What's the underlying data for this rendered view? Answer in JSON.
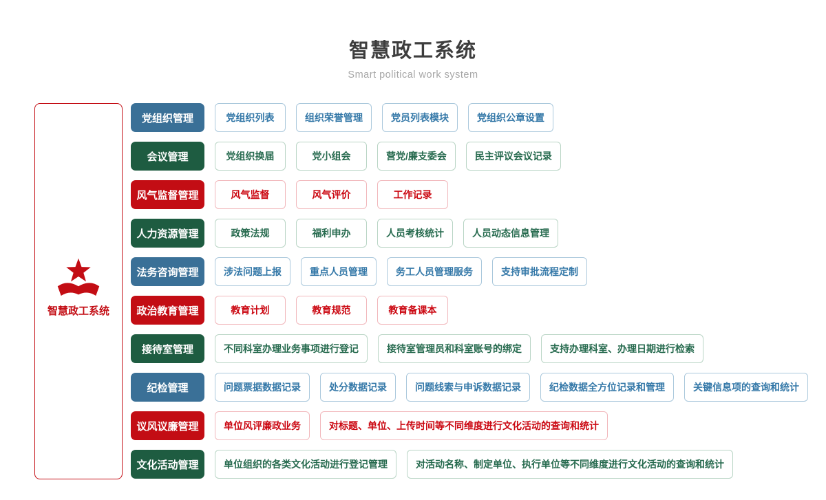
{
  "header": {
    "title": "智慧政工系统",
    "subtitle": "Smart political work system"
  },
  "root": {
    "label": "智慧政工系统",
    "icon": "party-star-ribbon-icon"
  },
  "colors": {
    "blue_solid": "#3a7097",
    "green_solid": "#1e5c41",
    "red_solid": "#c30d14",
    "blue_outline_border": "#aac8dc",
    "green_outline_border": "#b9d5c5",
    "red_outline_border": "#f1b7bb",
    "blue_text": "#3478a8",
    "green_text": "#266a4e",
    "red_text": "#cb0812",
    "root_border": "#c30d14",
    "title_text": "#3d3d3d",
    "subtitle_text": "#a6a6a6"
  },
  "rows": [
    {
      "label": "党组织管理",
      "color": "blue",
      "items": [
        "党组织列表",
        "组织荣誉管理",
        "党员列表模块",
        "党组织公章设置"
      ]
    },
    {
      "label": "会议管理",
      "color": "green",
      "items": [
        "党组织换届",
        "党小组会",
        "营党/廉支委会",
        "民主评议会议记录"
      ]
    },
    {
      "label": "风气监督管理",
      "color": "red",
      "items": [
        "风气监督",
        "风气评价",
        "工作记录"
      ]
    },
    {
      "label": "人力资源管理",
      "color": "green",
      "items": [
        "政策法规",
        "福利申办",
        "人员考核统计",
        "人员动态信息管理"
      ]
    },
    {
      "label": "法务咨询管理",
      "color": "blue",
      "items": [
        "涉法问题上报",
        "重点人员管理",
        "务工人员管理服务",
        "支持审批流程定制"
      ]
    },
    {
      "label": "政治教育管理",
      "color": "red",
      "items": [
        "教育计划",
        "教育规范",
        "教育备课本"
      ]
    },
    {
      "label": "接待室管理",
      "color": "green",
      "items": [
        "不同科室办理业务事项进行登记",
        "接待室管理员和科室账号的绑定",
        "支持办理科室、办理日期进行检索"
      ]
    },
    {
      "label": "纪检管理",
      "color": "blue",
      "items": [
        "问题票据数据记录",
        "处分数据记录",
        "问题线索与申诉数据记录",
        "纪检数据全方位记录和管理",
        "关键信息项的查询和统计"
      ]
    },
    {
      "label": "议风议廉管理",
      "color": "red",
      "items": [
        "单位风评廉政业务",
        "对标题、单位、上传时间等不同维度进行文化活动的查询和统计"
      ]
    },
    {
      "label": "文化活动管理",
      "color": "green",
      "items": [
        "单位组织的各类文化活动进行登记管理",
        "对活动名称、制定单位、执行单位等不同维度进行文化活动的查询和统计"
      ]
    }
  ]
}
